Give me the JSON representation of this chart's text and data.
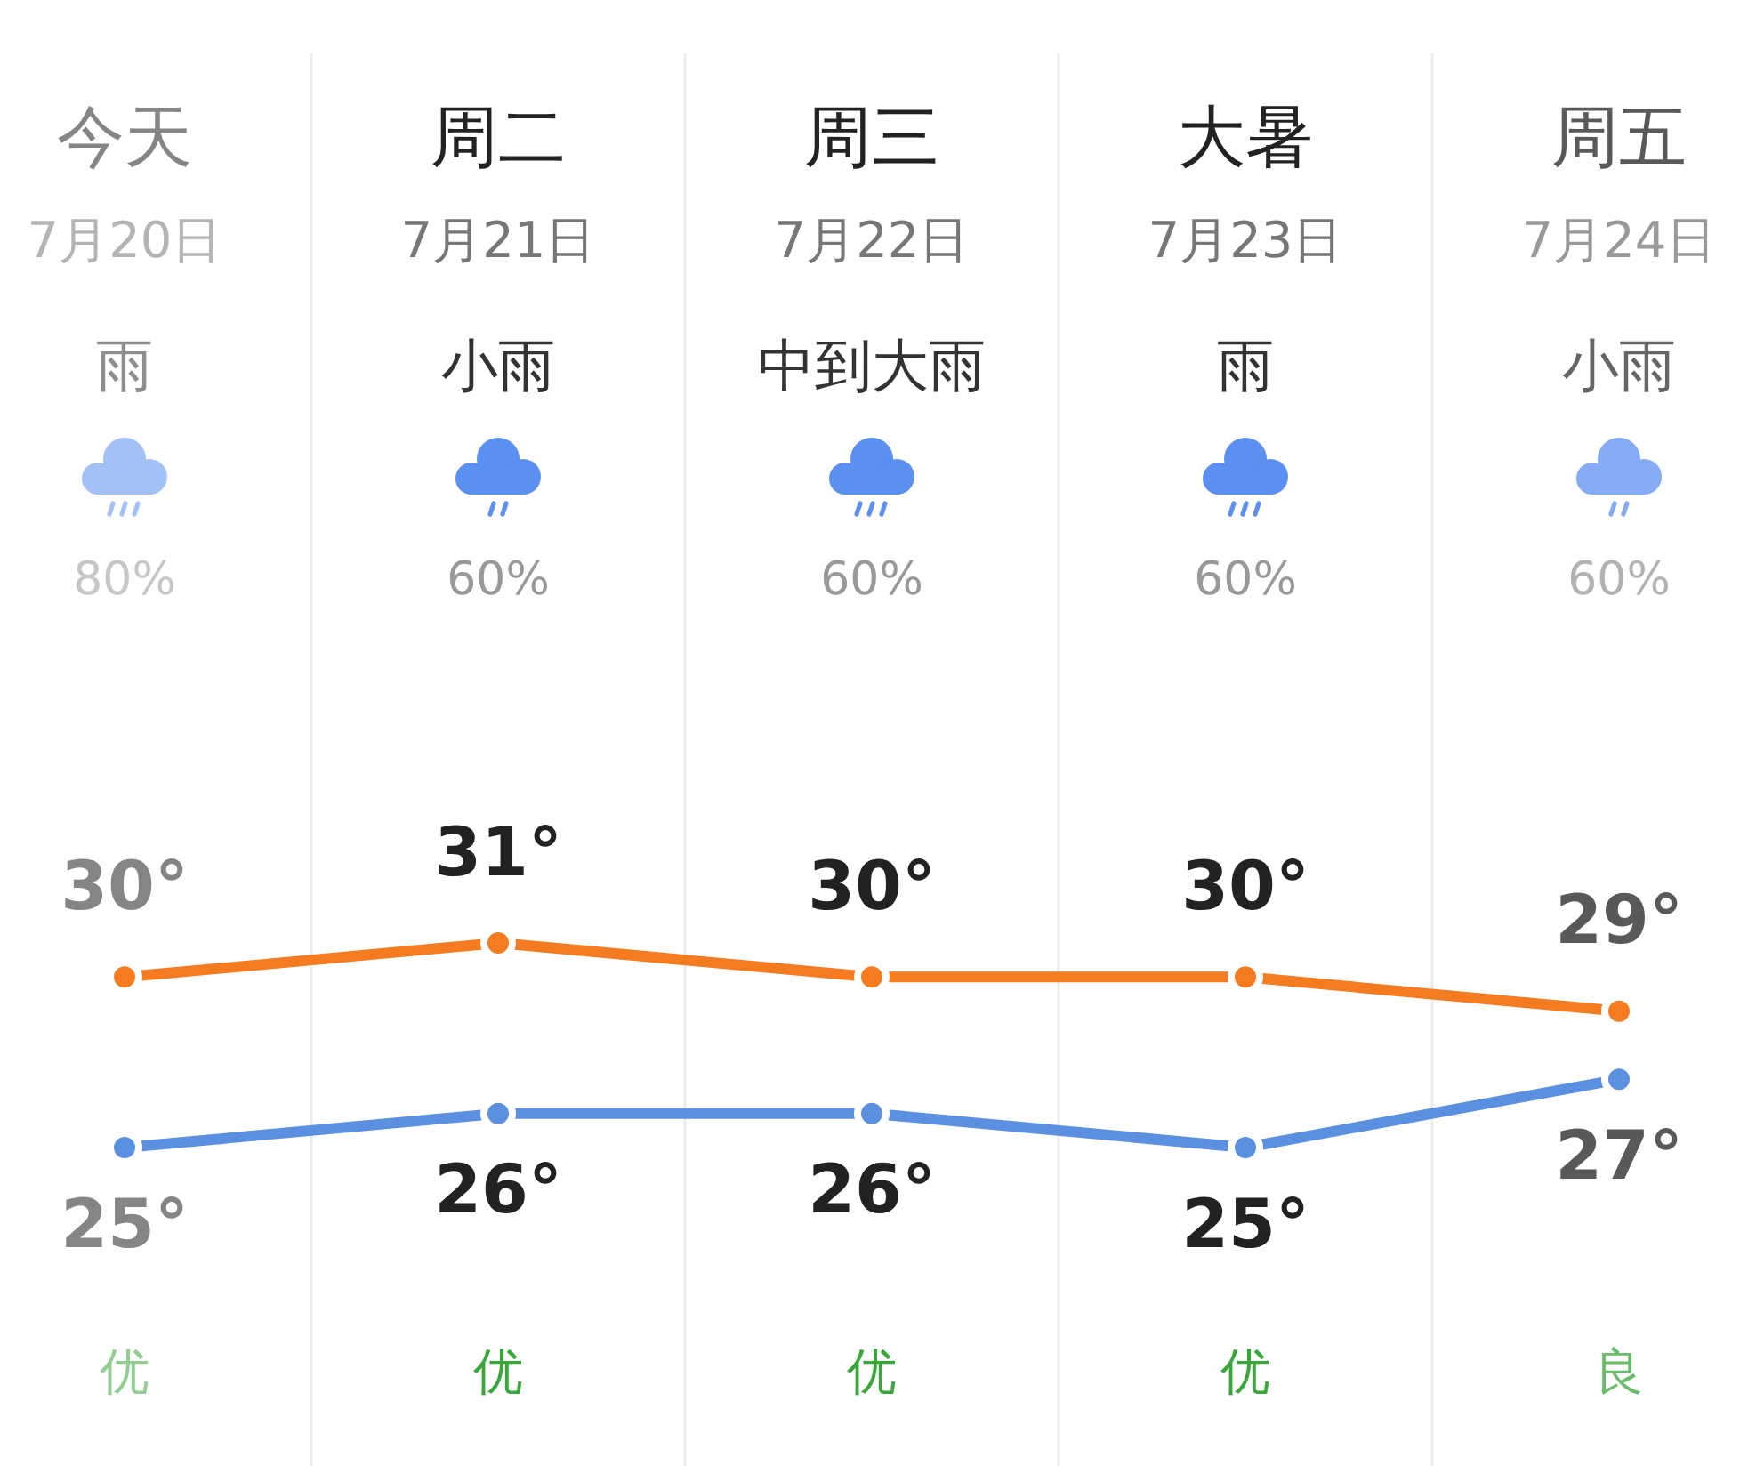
{
  "chart_data": {
    "type": "line",
    "categories": [
      "今天",
      "周二",
      "周三",
      "大暑",
      "周五"
    ],
    "series": [
      {
        "color": "#f47b20",
        "values": [
          30,
          31,
          30,
          30,
          29
        ],
        "value_labels": [
          "30°",
          "31°",
          "30°",
          "30°",
          "29°"
        ]
      },
      {
        "color": "#5b8fe0",
        "values": [
          25,
          26,
          26,
          25,
          27
        ],
        "value_labels": [
          "25°",
          "26°",
          "26°",
          "25°",
          "27°"
        ]
      }
    ],
    "annotations": [
      "7月20日",
      "7月21日",
      "7月22日",
      "7月23日",
      "7月24日",
      "雨",
      "小雨",
      "中到大雨",
      "雨",
      "小雨",
      "80%",
      "60%",
      "60%",
      "60%",
      "60%",
      "优",
      "优",
      "优",
      "优",
      "良"
    ],
    "grid": "x",
    "marker": "circle",
    "line_style": "solid",
    "tick_labels": "x"
  }
}
